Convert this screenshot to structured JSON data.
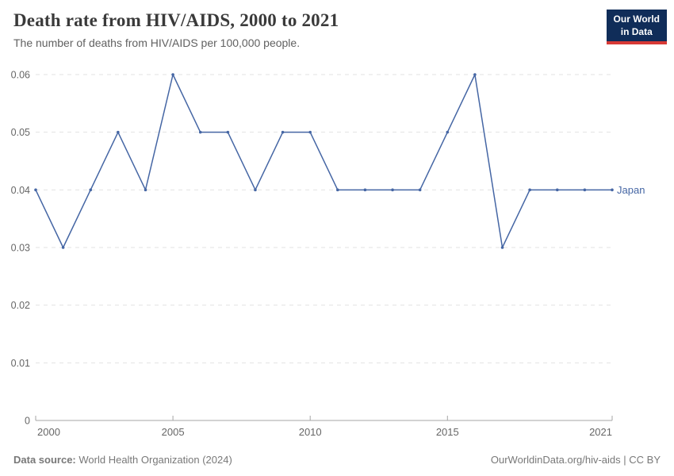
{
  "header": {
    "title": "Death rate from HIV/AIDS, 2000 to 2021",
    "subtitle": "The number of deaths from HIV/AIDS per 100,000 people.",
    "logo_line1": "Our World",
    "logo_line2": "in Data"
  },
  "chart_data": {
    "type": "line",
    "title": "Death rate from HIV/AIDS, 2000 to 2021",
    "xlabel": "",
    "ylabel": "",
    "x": [
      2000,
      2001,
      2002,
      2003,
      2004,
      2005,
      2006,
      2007,
      2008,
      2009,
      2010,
      2011,
      2012,
      2013,
      2014,
      2015,
      2016,
      2017,
      2018,
      2019,
      2020,
      2021
    ],
    "series": [
      {
        "name": "Japan",
        "color": "#4566a4",
        "values": [
          0.04,
          0.03,
          0.04,
          0.05,
          0.04,
          0.06,
          0.05,
          0.05,
          0.04,
          0.05,
          0.05,
          0.04,
          0.04,
          0.04,
          0.04,
          0.05,
          0.06,
          0.03,
          0.04,
          0.04,
          0.04,
          0.04
        ]
      }
    ],
    "xlim": [
      2000,
      2021
    ],
    "ylim": [
      0,
      0.06
    ],
    "x_tick_years": [
      2000,
      2005,
      2010,
      2015,
      2021
    ],
    "x_tick_labels": [
      "2000",
      "2005",
      "2010",
      "2015",
      "2021"
    ],
    "y_ticks": [
      {
        "value": 0,
        "label": "0"
      },
      {
        "value": 0.01,
        "label": "0.01"
      },
      {
        "value": 0.02,
        "label": "0.02"
      },
      {
        "value": 0.03,
        "label": "0.03"
      },
      {
        "value": 0.04,
        "label": "0.04"
      },
      {
        "value": 0.05,
        "label": "0.05"
      },
      {
        "value": 0.06,
        "label": "0.06"
      }
    ],
    "grid": "horizontal-dashed",
    "legend_position": "end-of-line",
    "end_label": "Japan"
  },
  "footer": {
    "datasource_label": "Data source:",
    "datasource_value": "World Health Organization (2024)",
    "credit": "OurWorldinData.org/hiv-aids | CC BY"
  },
  "colors": {
    "series": "#4566a4",
    "grid": "#e2e2e2",
    "axis": "#a5a5a5",
    "tick_text": "#666666",
    "title_text": "#3a3a3a",
    "subtitle_text": "#616161",
    "footer_text": "#787878",
    "logo_bg": "#102d59",
    "logo_accent": "#d73a36"
  }
}
